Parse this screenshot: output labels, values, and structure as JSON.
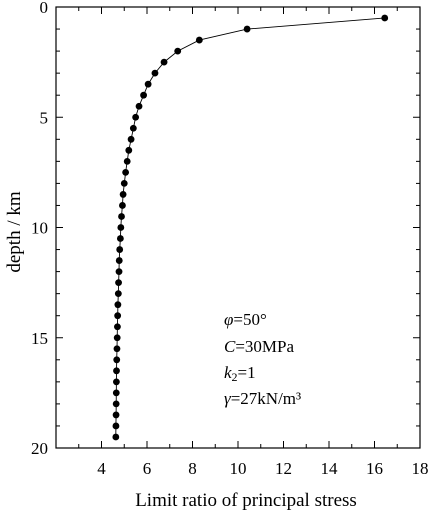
{
  "chart_data": {
    "type": "line",
    "title": "",
    "xlabel": "Limit ratio of principal stress",
    "ylabel": "depth / km",
    "xlim": [
      2,
      18
    ],
    "ylim": [
      0,
      20
    ],
    "y_inverted": true,
    "x_ticks": [
      4,
      6,
      8,
      10,
      12,
      14,
      16,
      18
    ],
    "x_tick_labels": [
      "4",
      "6",
      "8",
      "10",
      "12",
      "14",
      "16",
      "18"
    ],
    "y_ticks": [
      0,
      5,
      10,
      15,
      20
    ],
    "y_tick_labels": [
      "0",
      "5",
      "10",
      "15",
      "20"
    ],
    "grid": false,
    "marker": "filled-circle",
    "line_color": "#000000",
    "series": [
      {
        "x": [
          16.45,
          10.4,
          8.3,
          7.35,
          6.75,
          6.35,
          6.05,
          5.85,
          5.65,
          5.5,
          5.4,
          5.3,
          5.2,
          5.13,
          5.06,
          5.0,
          4.95,
          4.92,
          4.88,
          4.85,
          4.83,
          4.8,
          4.78,
          4.77,
          4.75,
          4.74,
          4.72,
          4.71,
          4.7,
          4.69,
          4.68,
          4.67,
          4.66,
          4.655,
          4.65,
          4.645,
          4.64,
          4.635,
          4.63
        ],
        "y": [
          0.5,
          1.0,
          1.5,
          2.0,
          2.5,
          3.0,
          3.5,
          4.0,
          4.5,
          5.0,
          5.5,
          6.0,
          6.5,
          7.0,
          7.5,
          8.0,
          8.5,
          9.0,
          9.5,
          10.0,
          10.5,
          11.0,
          11.5,
          12.0,
          12.5,
          13.0,
          13.5,
          14.0,
          14.5,
          15.0,
          15.5,
          16.0,
          16.5,
          17.0,
          17.5,
          18.0,
          18.5,
          19.0,
          19.5
        ]
      }
    ],
    "annotation": {
      "phi_sym": "φ",
      "phi_val": "=50°",
      "c_sym": "C",
      "c_val": "=30MPa",
      "k_sym": "k",
      "k_sub": "2",
      "k_val": "=1",
      "gamma_sym": "γ",
      "gamma_val": "=27kN/m³"
    }
  }
}
